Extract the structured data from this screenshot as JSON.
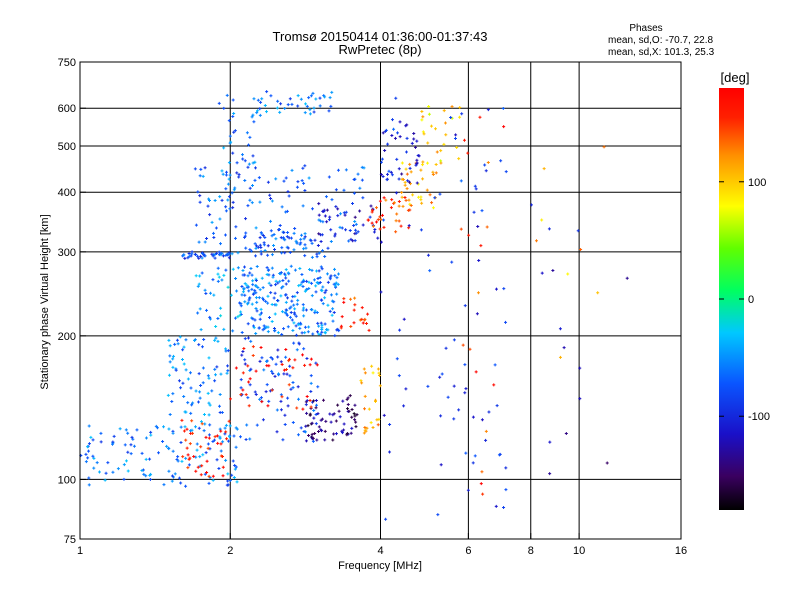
{
  "chart_data": {
    "type": "scatter",
    "title": "Tromsø 20150414 01:36:00-01:37:43",
    "subtitle": "RwPretec (8p)",
    "phase_info": {
      "heading": "Phases",
      "line_o": "mean, sd,O: -70.7, 22.8",
      "line_x": "mean, sd,X: 101.3, 25.3"
    },
    "xlabel": "Frequency [MHz]",
    "ylabel": "Stationary phase Virtual Height [km]",
    "x_scale": "log",
    "y_scale": "log",
    "xlim": [
      1,
      16
    ],
    "ylim": [
      75,
      750
    ],
    "x_ticks": [
      1,
      2,
      4,
      6,
      8,
      10,
      16
    ],
    "x_tick_labels": [
      "1",
      "2",
      "4",
      "6",
      "8",
      "10",
      "16"
    ],
    "x_grid": [
      2,
      4,
      6,
      8,
      10
    ],
    "y_ticks": [
      75,
      100,
      200,
      300,
      400,
      500,
      600,
      750
    ],
    "y_tick_labels": [
      "75",
      "100",
      "200",
      "300",
      "400",
      "500",
      "600",
      "750"
    ],
    "y_grid": [
      100,
      200,
      300,
      400,
      500,
      600
    ],
    "grid": true,
    "colorbar": {
      "label": "[deg]",
      "range": [
        -180,
        180
      ],
      "ticks": [
        -100,
        0,
        100
      ],
      "tick_labels": [
        "-100",
        "0",
        "100"
      ],
      "colormap": "rainbow"
    },
    "clusters": [
      {
        "x": [
          1.6,
          2.0
        ],
        "y": [
          290,
          300
        ],
        "phase": -80,
        "n": 40
      },
      {
        "x": [
          2.0,
          3.2
        ],
        "y": [
          290,
          330
        ],
        "phase": -75,
        "n": 70
      },
      {
        "x": [
          3.0,
          4.0
        ],
        "y": [
          315,
          380
        ],
        "phase": -110,
        "n": 40
      },
      {
        "x": [
          3.6,
          4.6
        ],
        "y": [
          330,
          390
        ],
        "phase": 150,
        "n": 35
      },
      {
        "x": [
          4.4,
          5.2
        ],
        "y": [
          370,
          470
        ],
        "phase": 110,
        "n": 35
      },
      {
        "x": [
          4.0,
          4.8
        ],
        "y": [
          420,
          580
        ],
        "phase": -105,
        "n": 40
      },
      {
        "x": [
          4.8,
          5.8
        ],
        "y": [
          450,
          610
        ],
        "phase": 95,
        "n": 25
      },
      {
        "x": [
          1.7,
          3.8
        ],
        "y": [
          310,
          460
        ],
        "phase": -70,
        "n": 110
      },
      {
        "x": [
          2.2,
          3.2
        ],
        "y": [
          580,
          650
        ],
        "phase": -60,
        "n": 40
      },
      {
        "x": [
          1.9,
          2.3
        ],
        "y": [
          380,
          640
        ],
        "phase": -65,
        "n": 50
      },
      {
        "x": [
          2.1,
          3.3
        ],
        "y": [
          200,
          280
        ],
        "phase": -60,
        "n": 260
      },
      {
        "x": [
          3.3,
          3.8
        ],
        "y": [
          205,
          240
        ],
        "phase": 150,
        "n": 20
      },
      {
        "x": [
          1.7,
          2.1
        ],
        "y": [
          200,
          280
        ],
        "phase": -50,
        "n": 40
      },
      {
        "x": [
          1.5,
          2.0
        ],
        "y": [
          120,
          200
        ],
        "phase": -60,
        "n": 90
      },
      {
        "x": [
          2.1,
          3.0
        ],
        "y": [
          120,
          200
        ],
        "phase": -80,
        "n": 90
      },
      {
        "x": [
          2.8,
          3.6
        ],
        "y": [
          120,
          150
        ],
        "phase": -140,
        "n": 70
      },
      {
        "x": [
          3.6,
          4.0
        ],
        "y": [
          125,
          175
        ],
        "phase": 110,
        "n": 25
      },
      {
        "x": [
          1.0,
          2.1
        ],
        "y": [
          96,
          130
        ],
        "phase": -60,
        "n": 130
      },
      {
        "x": [
          1.6,
          2.0
        ],
        "y": [
          100,
          135
        ],
        "phase": 165,
        "n": 40
      },
      {
        "x": [
          2.0,
          3.0
        ],
        "y": [
          140,
          190
        ],
        "phase": 175,
        "n": 40
      },
      {
        "x": [
          4.0,
          6.0
        ],
        "y": [
          82,
          640
        ],
        "phase": -90,
        "n": 50
      },
      {
        "x": [
          6.0,
          7.2
        ],
        "y": [
          86,
          600
        ],
        "phase": -95,
        "n": 30
      },
      {
        "x": [
          5.8,
          7.2
        ],
        "y": [
          90,
          600
        ],
        "phase": 150,
        "n": 18
      },
      {
        "x": [
          8.0,
          12.5
        ],
        "y": [
          100,
          640
        ],
        "phase": -120,
        "n": 14
      },
      {
        "x": [
          8.0,
          12.0
        ],
        "y": [
          180,
          650
        ],
        "phase": 110,
        "n": 8
      }
    ]
  }
}
